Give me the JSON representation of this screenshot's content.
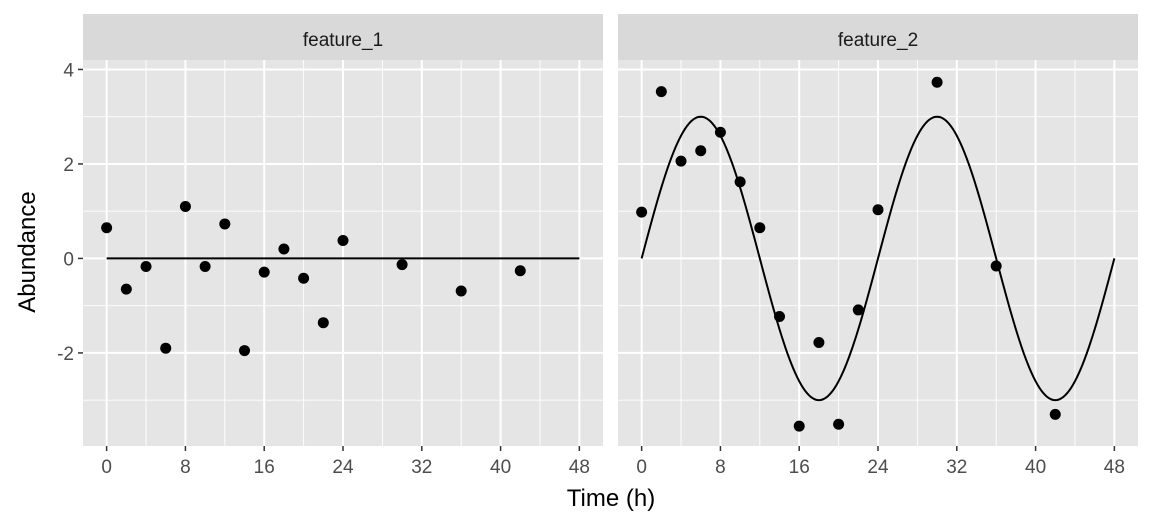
{
  "chart_data": {
    "type": "scatter",
    "xlabel": "Time (h)",
    "ylabel": "Abundance",
    "xlim": [
      -2.4,
      50.4
    ],
    "ylim": [
      -3.97,
      4.2
    ],
    "x_ticks": [
      0,
      8,
      16,
      24,
      32,
      40,
      48
    ],
    "y_ticks": [
      4,
      2,
      0,
      -2
    ],
    "y_tick_labels": [
      "4",
      "2",
      "0",
      "-2"
    ],
    "grid": true,
    "panels": [
      {
        "strip": "feature_1",
        "points": {
          "x": [
            0,
            2,
            4,
            6,
            8,
            10,
            12,
            14,
            16,
            18,
            20,
            22,
            24,
            30,
            36,
            42
          ],
          "y": [
            0.65,
            -0.65,
            -0.17,
            -1.9,
            1.1,
            -0.17,
            0.73,
            -1.95,
            -0.29,
            0.2,
            -0.42,
            -1.36,
            0.38,
            -0.13,
            -0.69,
            -0.26
          ]
        },
        "fit": {
          "kind": "flat",
          "mean": 0,
          "amplitude": 0,
          "period": 24
        }
      },
      {
        "strip": "feature_2",
        "points": {
          "x": [
            0,
            2,
            4,
            6,
            8,
            10,
            12,
            14,
            16,
            18,
            20,
            22,
            24,
            30,
            36,
            42
          ],
          "y": [
            0.98,
            3.53,
            2.06,
            2.28,
            2.67,
            1.62,
            0.65,
            -1.23,
            -3.55,
            -1.78,
            -3.51,
            -1.09,
            1.03,
            3.73,
            -0.16,
            -3.3
          ]
        },
        "fit": {
          "kind": "sine",
          "mean": 0,
          "amplitude": 3,
          "period": 24
        }
      }
    ]
  },
  "colors": {
    "panel_bg": "#e5e5e5",
    "strip_bg": "#d9d9d9",
    "grid": "#ffffff",
    "points": "#000000",
    "line": "#000000",
    "tick": "#333333"
  }
}
